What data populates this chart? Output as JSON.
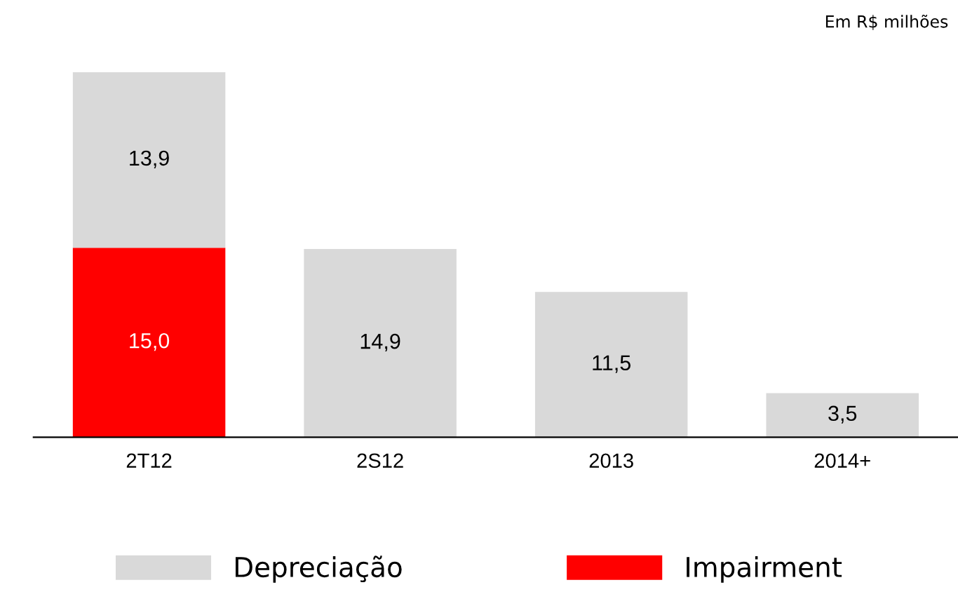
{
  "chart_data": {
    "type": "bar",
    "stacked": true,
    "legend": "bottom",
    "categories": [
      "2T12",
      "2S12",
      "2013",
      "2014+"
    ],
    "series": [
      {
        "name": "Impairment",
        "color": "#ff0000",
        "values": [
          15.0,
          null,
          null,
          null
        ],
        "value_labels": [
          "15,0",
          null,
          null,
          null
        ]
      },
      {
        "name": "Depreciação",
        "color": "#d9d9d9",
        "values": [
          13.9,
          14.9,
          11.5,
          3.5
        ],
        "value_labels": [
          "13,9",
          "14,9",
          "11,5",
          "3,5"
        ]
      }
    ],
    "annotations": [
      "Em R$ milhões"
    ]
  }
}
